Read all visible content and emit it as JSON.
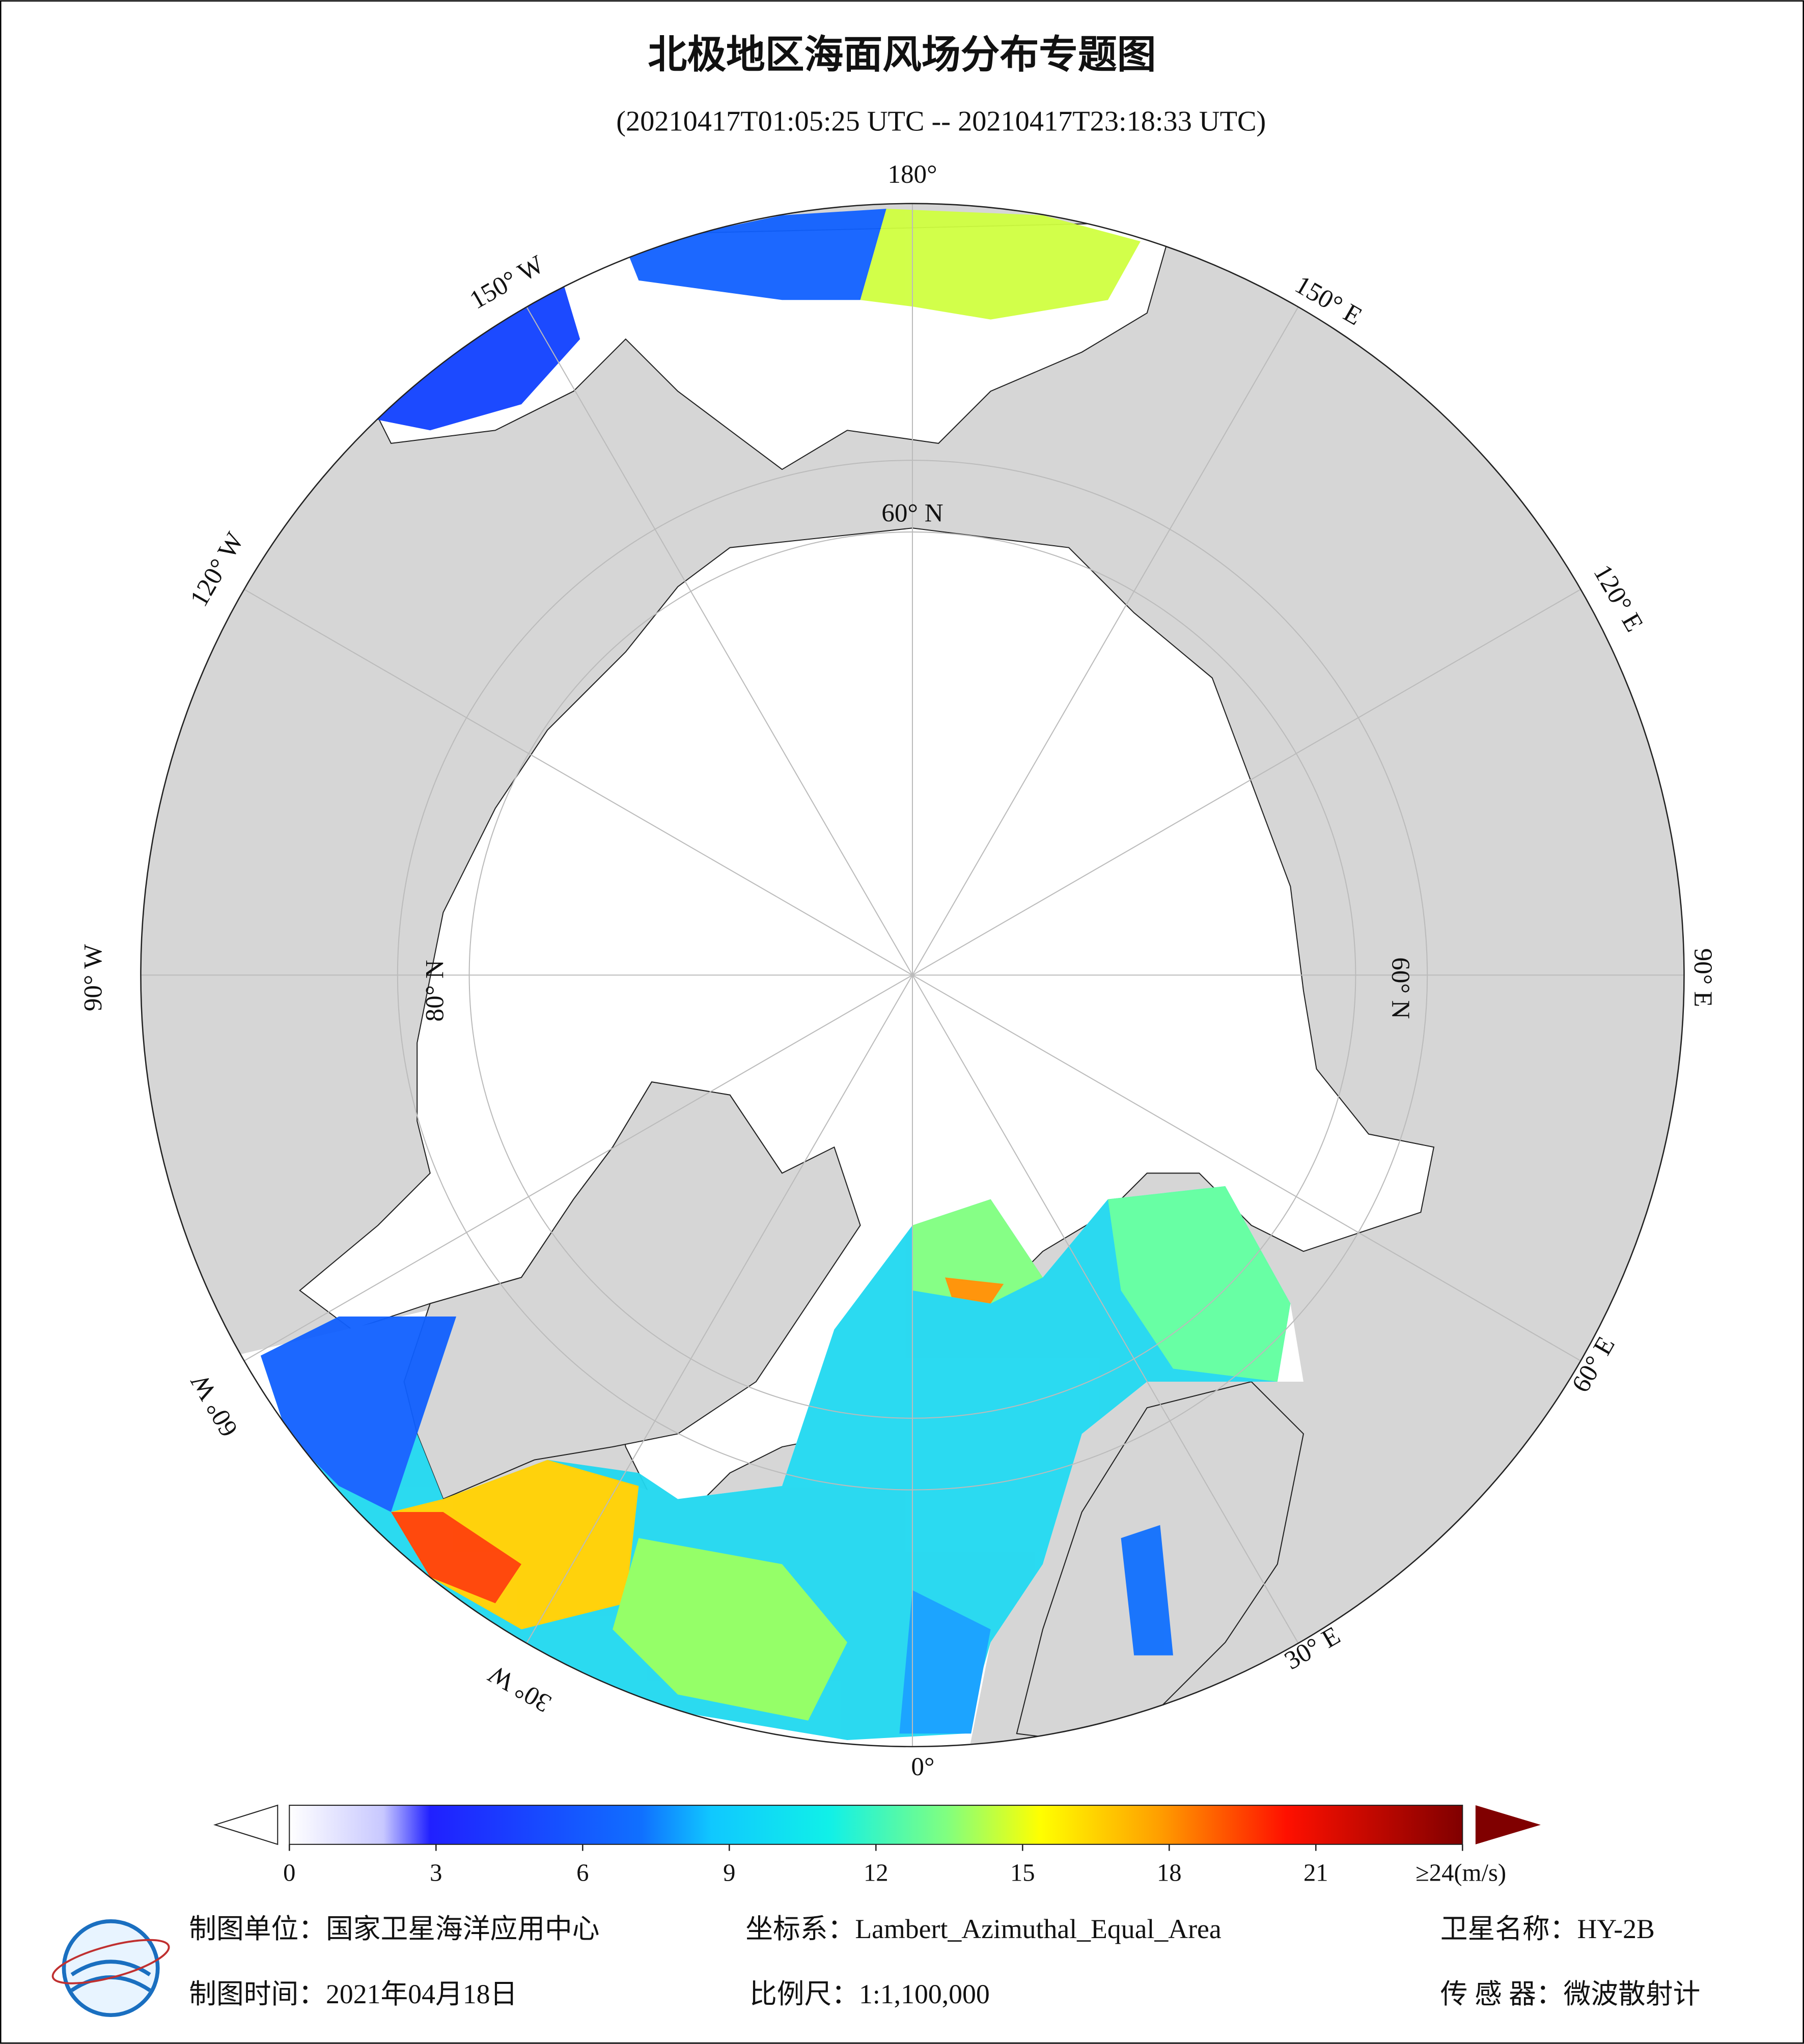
{
  "title": "北极地区海面风场分布专题图",
  "subtitle": "(20210417T01:05:25 UTC -- 20210417T23:18:33 UTC)",
  "map": {
    "longitude_labels": [
      "180°",
      "150° W",
      "120° W",
      "90° W",
      "60° W",
      "30° W",
      "0°",
      "30° E",
      "60° E",
      "90° E",
      "120° E",
      "150° E"
    ],
    "latitude_labels": [
      "60° N",
      "60° N",
      "80° N"
    ]
  },
  "colorbar": {
    "lim": [
      0,
      24
    ],
    "ticks": [
      0,
      3,
      6,
      9,
      12,
      15,
      18,
      21,
      {
        "value": 24,
        "label": "≥24(m/s)"
      }
    ]
  },
  "footer": {
    "unit": {
      "label": "制图单位：",
      "value": "国家卫星海洋应用中心"
    },
    "crs": {
      "label": "坐标系：",
      "value": "Lambert_Azimuthal_Equal_Area"
    },
    "satellite": {
      "label": "卫星名称：",
      "value": "HY-2B"
    },
    "date": {
      "label": "制图时间：",
      "value": "2021年04月18日"
    },
    "scale": {
      "label": "比例尺：",
      "value": "1:1,100,000"
    },
    "sensor": {
      "label": "传 感 器：",
      "value": "微波散射计"
    }
  }
}
